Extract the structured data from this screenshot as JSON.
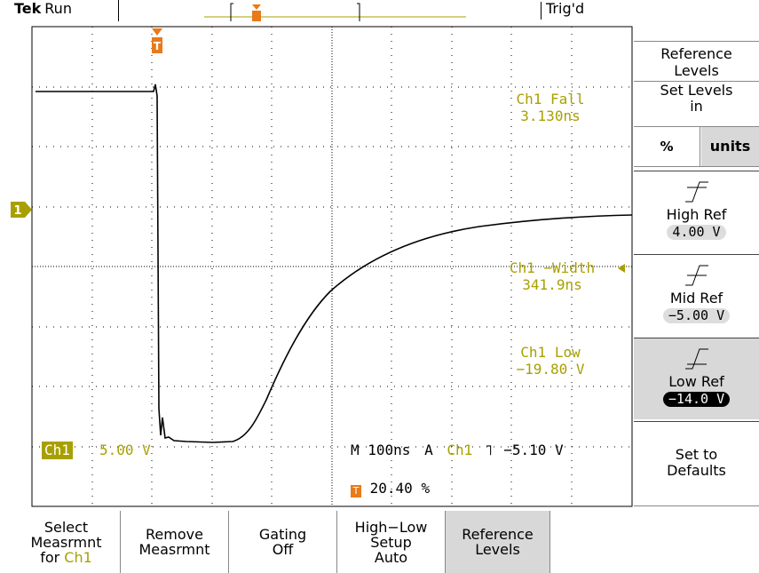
{
  "header": {
    "brand": "Tek",
    "status": "Run",
    "trigger_state": "Trig'd"
  },
  "readouts": {
    "ch1_fall_label": "Ch1 Fall",
    "ch1_fall_value": "3.130ns",
    "ch1_width_label": "Ch1 −Width",
    "ch1_width_value": "341.9ns",
    "ch1_low_label": "Ch1 Low",
    "ch1_low_value": "−19.80 V",
    "channel_badge": "Ch1",
    "channel_scale": "5.00 V",
    "timebase": "M 100ns",
    "trigger_mode": "A",
    "trigger_source": "Ch1",
    "trigger_slope_symbol": "˥",
    "trigger_level": "−5.10 V",
    "trigger_position": "20.40 %",
    "channel_marker": "1",
    "trigger_marker": "T"
  },
  "side_menu": {
    "title_line1": "Reference",
    "title_line2": "Levels",
    "set_levels_line1": "Set Levels",
    "set_levels_line2": "in",
    "option_percent": "%",
    "option_units": "units",
    "high_ref_label": "High Ref",
    "high_ref_value": "4.00 V",
    "mid_ref_label": "Mid Ref",
    "mid_ref_value": "−5.00 V",
    "low_ref_label": "Low Ref",
    "low_ref_value": "−14.0 V",
    "defaults_line1": "Set to",
    "defaults_line2": "Defaults"
  },
  "bottom_menu": {
    "select_line1": "Select",
    "select_line2": "Measrmnt",
    "select_line3_prefix": "for ",
    "select_line3_channel": "Ch1",
    "remove_line1": "Remove",
    "remove_line2": "Measrmnt",
    "gating_line1": "Gating",
    "gating_line2": "Off",
    "highlow_line1": "High−Low",
    "highlow_line2": "Setup",
    "highlow_line3": "Auto",
    "reflevels_line1": "Reference",
    "reflevels_line2": "Levels"
  },
  "colors": {
    "measurement": "#a8a000",
    "channel": "#a8a000",
    "trigger_marker": "#e87a1a",
    "selected_bg": "#d8d8d8"
  }
}
